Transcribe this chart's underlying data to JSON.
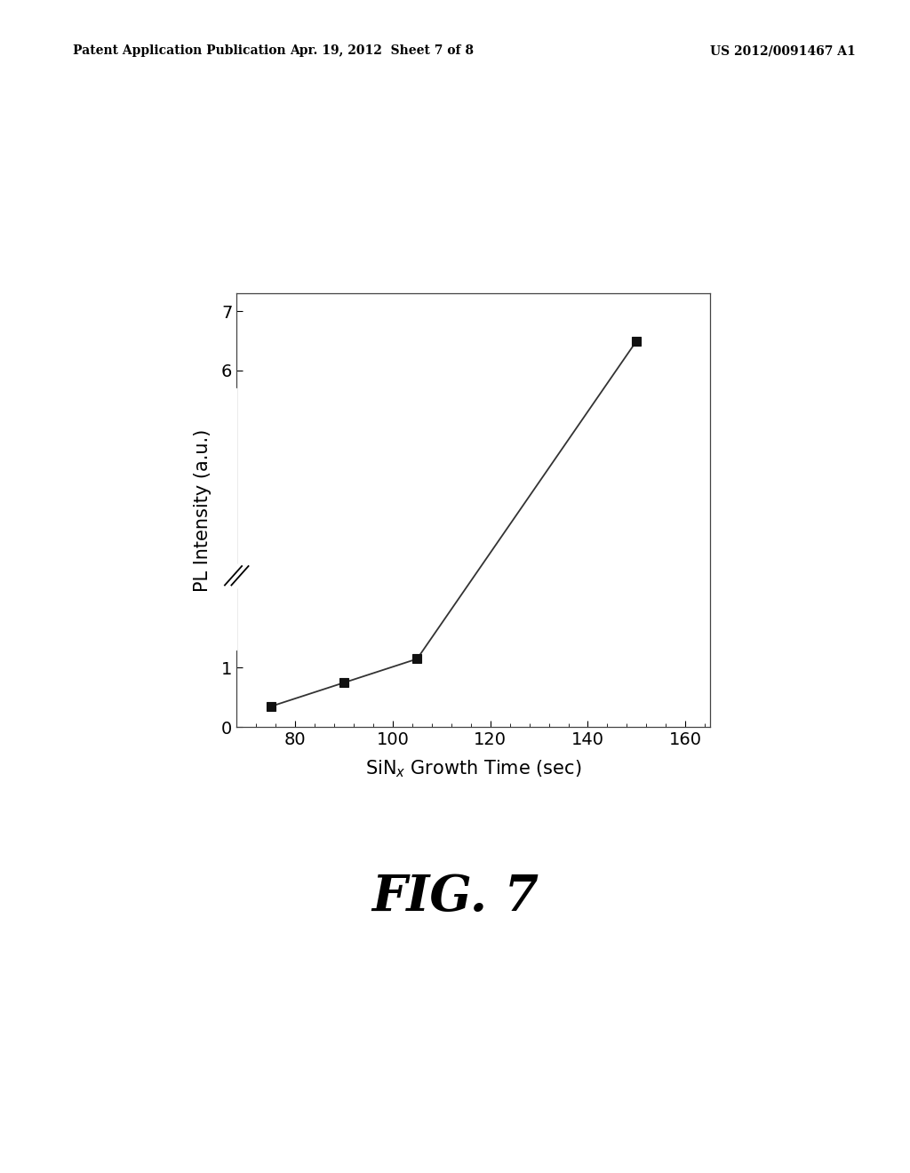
{
  "x_data": [
    75,
    90,
    105,
    150
  ],
  "y_data": [
    0.35,
    0.75,
    1.15,
    6.5
  ],
  "xlabel": "SiN$_x$ Growth Time (sec)",
  "ylabel": "PL Intensity (a.u.)",
  "fig_label": "FIG. 7",
  "header_left": "Patent Application Publication",
  "header_center": "Apr. 19, 2012  Sheet 7 of 8",
  "header_right": "US 2012/0091467 A1",
  "x_ticks": [
    80,
    100,
    120,
    140,
    160
  ],
  "x_lim": [
    68,
    165
  ],
  "y_ticks": [
    0,
    1,
    6,
    7
  ],
  "y_lim": [
    0,
    7.3
  ],
  "marker_size": 7,
  "line_color": "#333333",
  "marker_color": "#111111",
  "background_color": "#ffffff",
  "font_size_ticks": 14,
  "font_size_label": 15,
  "font_size_fig": 40,
  "font_size_header": 10
}
